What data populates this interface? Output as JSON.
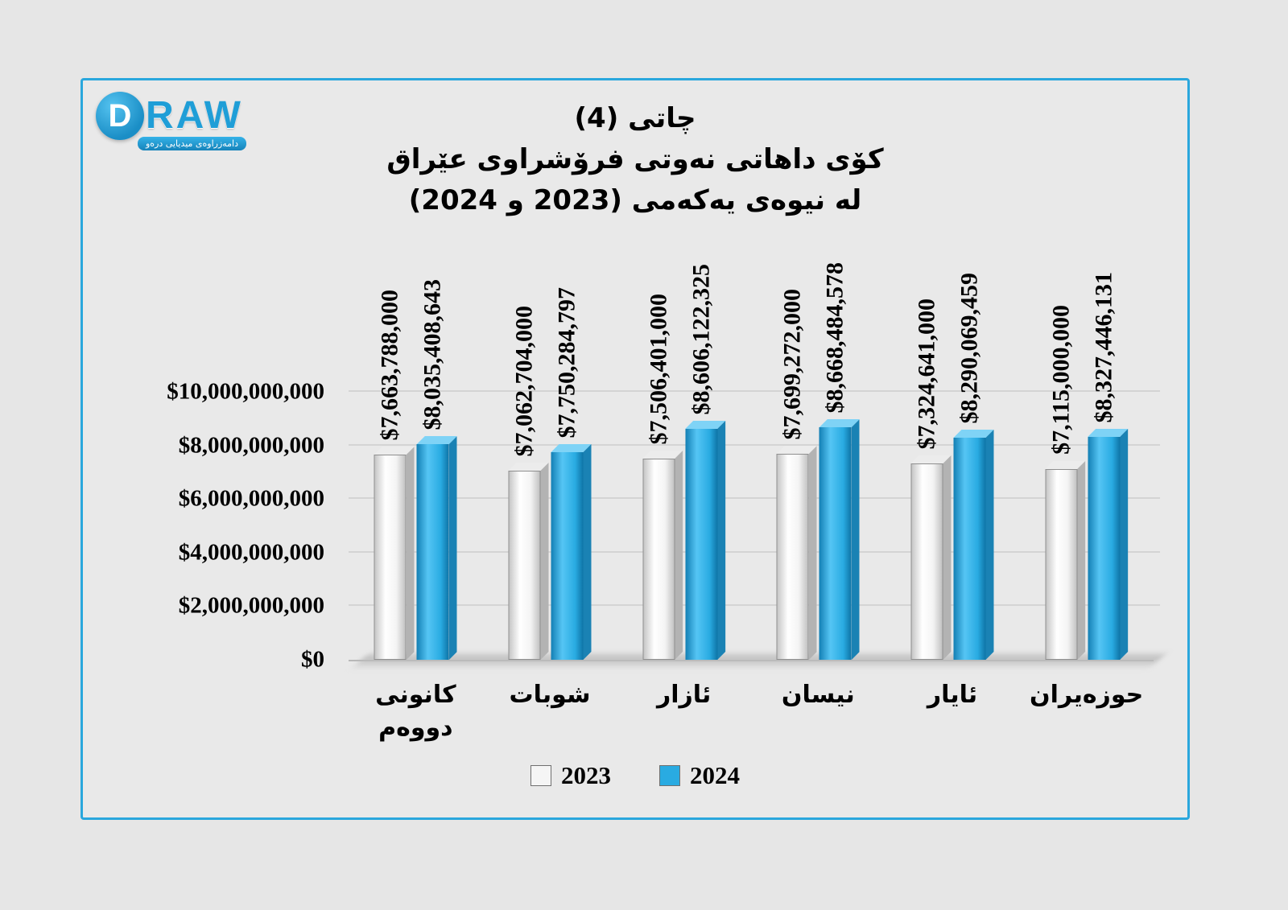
{
  "logo": {
    "letter": "D",
    "brand": "RAW",
    "tagline": "دامەزراوەی میدیایی درەو"
  },
  "title": {
    "line1": "چاتی (4)",
    "line2": "کۆی داهاتی نەوتی فرۆشراوی عێراق",
    "line3": "لە نیوەی یەکەمی (2023 و 2024)"
  },
  "chart_data": {
    "type": "bar",
    "title": "کۆی داهاتی نەوتی فرۆشراوی عێراق لە نیوەی یەکەمی (2023 و 2024)",
    "categories": [
      "کانونی دووەم",
      "شوبات",
      "ئازار",
      "نیسان",
      "ئایار",
      "حوزەیران"
    ],
    "series": [
      {
        "name": "2023",
        "color": "#f2f2f2",
        "values": [
          7663788000,
          7062704000,
          7506401000,
          7699272000,
          7324641000,
          7115000000
        ],
        "labels": [
          "$7,663,788,000",
          "$7,062,704,000",
          "$7,506,401,000",
          "$7,699,272,000",
          "$7,324,641,000",
          "$7,115,000,000"
        ]
      },
      {
        "name": "2024",
        "color": "#29abe2",
        "values": [
          8035408643,
          7750284797,
          8606122325,
          8668484578,
          8290069459,
          8327446131
        ],
        "labels": [
          "$8,035,408,643",
          "$7,750,284,797",
          "$8,606,122,325",
          "$8,668,484,578",
          "$8,290,069,459",
          "$8,327,446,131"
        ]
      }
    ],
    "yticks": [
      0,
      2000000000,
      4000000000,
      6000000000,
      8000000000,
      10000000000
    ],
    "ytick_labels": [
      "$0",
      "$2,000,000,000",
      "$4,000,000,000",
      "$6,000,000,000",
      "$8,000,000,000",
      "$10,000,000,000"
    ],
    "ylim": [
      0,
      10000000000
    ],
    "grid": true,
    "legend_position": "bottom"
  },
  "legend": {
    "items": [
      {
        "label": "2023",
        "color": "#f2f2f2"
      },
      {
        "label": "2024",
        "color": "#29abe2"
      }
    ]
  }
}
